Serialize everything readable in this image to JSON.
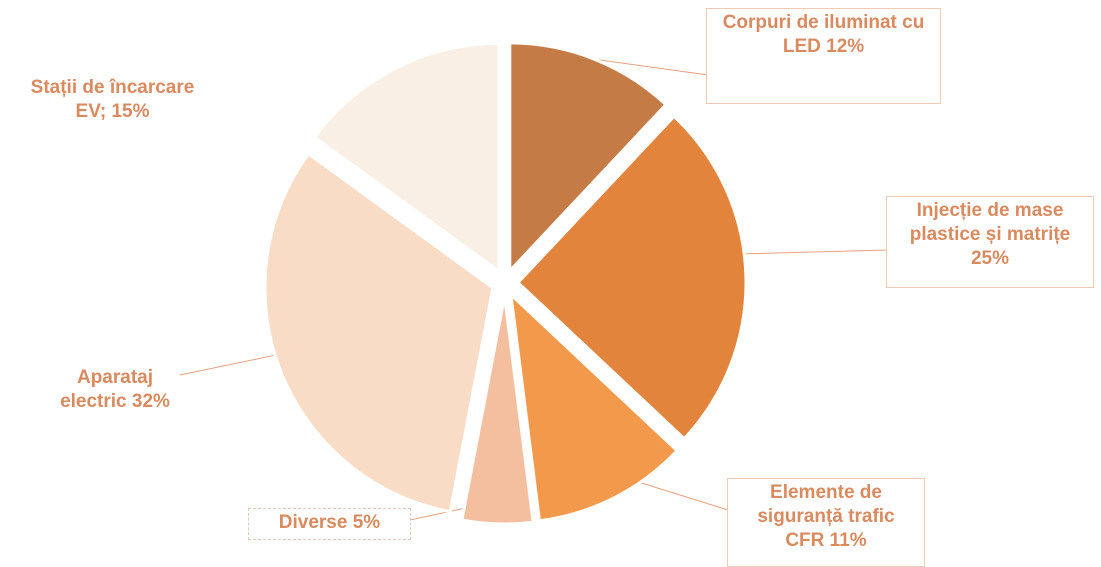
{
  "chart_data": {
    "type": "pie",
    "categories": [
      "Corpuri de iluminat cu LED",
      "Injecție de mase plastice și matrițe",
      "Elemente de siguranță trafic CFR",
      "Diverse",
      "Aparataj electric",
      "Stații de încarcare EV;"
    ],
    "values": [
      12,
      25,
      11,
      5,
      32,
      15
    ],
    "value_labels": [
      "12%",
      "25%",
      "11%",
      "5%",
      "32%",
      "15%"
    ],
    "colors": [
      "#c47b45",
      "#e2843c",
      "#f2994b",
      "#f4bf9e",
      "#f8dcc5",
      "#f9efe5"
    ]
  }
}
